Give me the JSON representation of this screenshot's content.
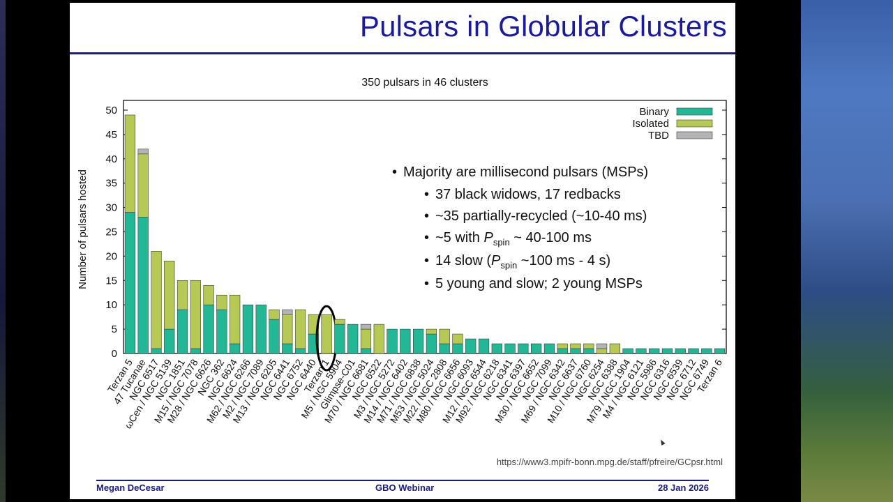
{
  "slide": {
    "title": "Pulsars in Globular Clusters",
    "footer_author": "Megan DeCesar",
    "footer_event": "GBO Webinar",
    "footer_date": "28 Jan 2026",
    "source_url": "https://www3.mpifr-bonn.mpg.de/staff/pfreire/GCpsr.html"
  },
  "bullets": {
    "main": "Majority are millisecond pulsars (MSPs)",
    "sub1": "37 black widows, 17 redbacks",
    "sub2": "~35 partially-recycled (~10-40 ms)",
    "sub3_pre": "~5 with ",
    "sub3_p": "P",
    "sub3_sub": "spin",
    "sub3_post": " ~ 40-100 ms",
    "sub4_pre": "14 slow (",
    "sub4_p": "P",
    "sub4_sub": "spin",
    "sub4_post": " ~100 ms - 4 s)",
    "sub5": "5 young and slow; 2 young MSPs"
  },
  "colors": {
    "binary": "#22b795",
    "isolated": "#b7c955",
    "tbd": "#b4b4b4",
    "title": "#1a1aa0"
  },
  "chart_data": {
    "type": "bar",
    "title": "350 pulsars in 46 clusters",
    "ylabel": "Number of pulsars hosted",
    "xlabel": "",
    "ylim": [
      0,
      52
    ],
    "yticks": [
      0,
      5,
      10,
      15,
      20,
      25,
      30,
      35,
      40,
      45,
      50
    ],
    "stacked": true,
    "legend_position": "top-right",
    "highlighted_category": "Terzan 1",
    "categories": [
      "Terzan 5",
      "47 Tucanae",
      "NGC 6517",
      "ωCen / NGC 5139",
      "NGC 1851",
      "M15 / NGC 7078",
      "M28 / NGC 6626",
      "NGC 362",
      "NGC 6624",
      "M62 / NGC 6266",
      "M2 / NGC 7089",
      "M13 / NGC 6205",
      "NGC 6441",
      "NGC 6752",
      "NGC 6440",
      "Terzan 1",
      "M5 / NGC 5904",
      "Glimpse-C01",
      "M70 / NGC 6681",
      "NGC 6522",
      "M3 / NGC 5272",
      "M14 / NGC 6402",
      "M71 / NGC 6838",
      "M53 / NGC 5024",
      "M22 / NGC 2808",
      "M80 / NGC 6656",
      "NGC 6093",
      "M12 / NGC 6544",
      "M92 / NGC 6218",
      "NGC 6341",
      "NGC 6397",
      "M30 / NGC 6652",
      "NGC 7099",
      "M69 / NGC 6342",
      "NGC 6637",
      "M10 / NGC 6760",
      "NGC 6254",
      "NGC 6388",
      "M79 / NGC 1904",
      "M4 / NGC 6121",
      "NGC 5986",
      "NGC 6316",
      "NGC 6539",
      "NGC 6712",
      "NGC 6749",
      "Terzan 6"
    ],
    "series": [
      {
        "name": "Binary",
        "values": [
          29,
          28,
          1,
          5,
          9,
          1,
          10,
          9,
          2,
          10,
          10,
          7,
          2,
          1,
          4,
          0,
          6,
          6,
          1,
          0,
          5,
          5,
          5,
          4,
          2,
          2,
          3,
          3,
          2,
          2,
          2,
          2,
          2,
          1,
          1,
          1,
          0,
          0,
          1,
          1,
          1,
          1,
          1,
          1,
          1,
          1
        ]
      },
      {
        "name": "Isolated",
        "values": [
          20,
          13,
          20,
          14,
          6,
          14,
          4,
          3,
          10,
          0,
          0,
          2,
          6,
          8,
          4,
          8,
          1,
          0,
          4,
          6,
          0,
          0,
          0,
          1,
          3,
          2,
          0,
          0,
          0,
          0,
          0,
          0,
          0,
          1,
          1,
          1,
          1,
          2,
          0,
          0,
          0,
          0,
          0,
          0,
          0,
          0
        ]
      },
      {
        "name": "TBD",
        "values": [
          0,
          1,
          0,
          0,
          0,
          0,
          0,
          0,
          0,
          0,
          0,
          0,
          1,
          0,
          0,
          0,
          0,
          0,
          1,
          0,
          0,
          0,
          0,
          0,
          0,
          0,
          0,
          0,
          0,
          0,
          0,
          0,
          0,
          0,
          0,
          0,
          1,
          0,
          0,
          0,
          0,
          0,
          0,
          0,
          0,
          0
        ]
      }
    ]
  }
}
